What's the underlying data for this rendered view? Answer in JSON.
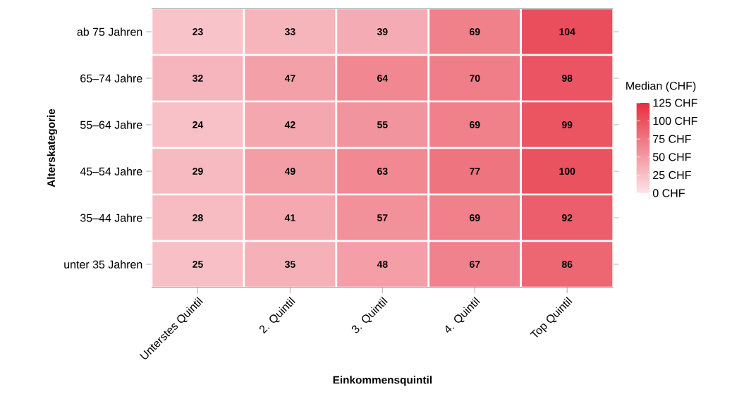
{
  "chart_data": {
    "type": "heatmap",
    "xlabel": "Einkommensquintil",
    "ylabel": "Alterskategorie",
    "clabel": "Median (CHF)",
    "categories": [
      "Unterstes Quintil",
      "2. Quintil",
      "3. Quintil",
      "4. Quintil",
      "Top Quintil"
    ],
    "y_categories": [
      "ab 75 Jahren",
      "65–74 Jahre",
      "55–64 Jahre",
      "45–54 Jahre",
      "35–44 Jahre",
      "unter 35 Jahren"
    ],
    "cells": [
      [
        23,
        33,
        39,
        69,
        104
      ],
      [
        32,
        47,
        64,
        70,
        98
      ],
      [
        24,
        42,
        55,
        69,
        99
      ],
      [
        29,
        49,
        63,
        77,
        100
      ],
      [
        28,
        41,
        57,
        69,
        92
      ],
      [
        25,
        35,
        48,
        67,
        86
      ]
    ],
    "clim": [
      0,
      125
    ],
    "cticks": [
      {
        "value": 0,
        "label": "0 CHF"
      },
      {
        "value": 25,
        "label": "25 CHF"
      },
      {
        "value": 50,
        "label": "50 CHF"
      },
      {
        "value": 75,
        "label": "75 CHF"
      },
      {
        "value": 100,
        "label": "100 CHF"
      },
      {
        "value": 125,
        "label": "125 CHF"
      }
    ],
    "data_labels": true
  }
}
